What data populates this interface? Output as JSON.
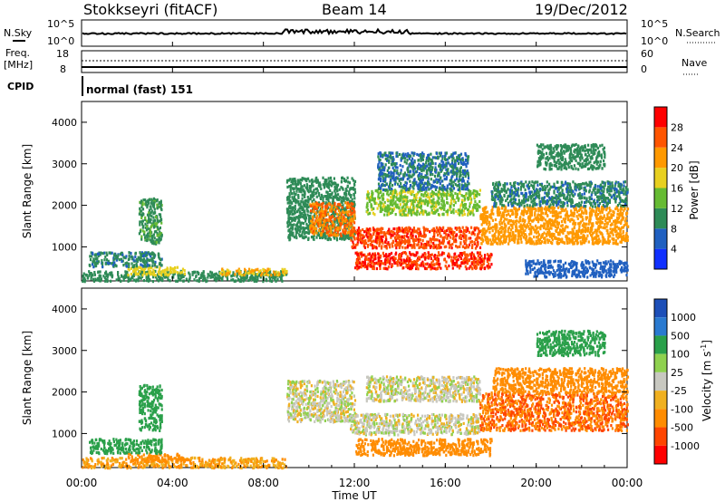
{
  "header": {
    "title": "Stokkseyri (fitACF)",
    "beam": "Beam 14",
    "date": "19/Dec/2012"
  },
  "noise_panel": {
    "left_label": "N.Sky",
    "right_label": "N.Search",
    "left_ticks": [
      "10^5",
      "10^0"
    ],
    "right_ticks": [
      "10^5",
      "10^0"
    ]
  },
  "freq_panel": {
    "left_label_1": "Freq.",
    "left_label_2": "[MHz]",
    "right_label": "Nave",
    "left_ticks": [
      "18",
      "8"
    ],
    "right_ticks": [
      "60",
      "0"
    ],
    "cpid_label": "CPID",
    "cpid_text": "normal (fast) 151"
  },
  "power_colorbar": {
    "label": "Power [dB]",
    "ticks": [
      "28",
      "24",
      "20",
      "16",
      "12",
      "8",
      "4"
    ],
    "colors": [
      "#1030ff",
      "#2060c0",
      "#2e8b57",
      "#66bb33",
      "#e8d020",
      "#ff9900",
      "#ff5500",
      "#ff0000"
    ]
  },
  "velocity_colorbar": {
    "label": "Velocity [m s^-1]",
    "ticks": [
      "1000",
      "500",
      "100",
      "25",
      "-25",
      "-100",
      "-500",
      "-1000"
    ],
    "colors": [
      "#1d4fb8",
      "#2a7ad0",
      "#2aa04a",
      "#8fd14f",
      "#c8c8c0",
      "#f0b020",
      "#ff8c00",
      "#ff4500",
      "#ff0000"
    ]
  },
  "chart_data": [
    {
      "type": "heatmap",
      "title": "",
      "xlabel": "Time UT",
      "ylabel": "Slant Range [km]",
      "xticks": [
        "00:00",
        "04:00",
        "08:00",
        "12:00",
        "16:00",
        "20:00",
        "00:00"
      ],
      "yticks": [
        "1000",
        "2000",
        "3000",
        "4000"
      ],
      "xlim": [
        0,
        24
      ],
      "ylim": [
        180,
        4500
      ],
      "colorbar": "Power [dB]",
      "regions": [
        {
          "t0": 0.0,
          "t1": 9.0,
          "r0": 200,
          "r1": 450,
          "v": 10
        },
        {
          "t0": 2.0,
          "t1": 4.5,
          "r0": 350,
          "r1": 550,
          "v": 18
        },
        {
          "t0": 6.0,
          "t1": 9.0,
          "r0": 350,
          "r1": 500,
          "v": 20
        },
        {
          "t0": 0.3,
          "t1": 3.5,
          "r0": 550,
          "r1": 900,
          "v": 9
        },
        {
          "t0": 2.5,
          "t1": 3.5,
          "r0": 1100,
          "r1": 2200,
          "v": 11
        },
        {
          "t0": 9.0,
          "t1": 12.0,
          "r0": 1200,
          "r1": 2700,
          "v": 10
        },
        {
          "t0": 10.0,
          "t1": 12.0,
          "r0": 1300,
          "r1": 2100,
          "v": 24
        },
        {
          "t0": 11.8,
          "t1": 17.5,
          "r0": 1000,
          "r1": 1500,
          "v": 27
        },
        {
          "t0": 12.0,
          "t1": 18.0,
          "r0": 500,
          "r1": 900,
          "v": 28
        },
        {
          "t0": 12.5,
          "t1": 17.5,
          "r0": 1800,
          "r1": 2400,
          "v": 15
        },
        {
          "t0": 13.0,
          "t1": 17.0,
          "r0": 2400,
          "r1": 3300,
          "v": 8
        },
        {
          "t0": 17.5,
          "t1": 24.0,
          "r0": 1100,
          "r1": 2000,
          "v": 22
        },
        {
          "t0": 18.0,
          "t1": 24.0,
          "r0": 2000,
          "r1": 2600,
          "v": 9
        },
        {
          "t0": 20.0,
          "t1": 23.0,
          "r0": 2900,
          "r1": 3500,
          "v": 10
        },
        {
          "t0": 19.5,
          "t1": 24.0,
          "r0": 300,
          "r1": 700,
          "v": 6
        }
      ]
    },
    {
      "type": "heatmap",
      "title": "",
      "xlabel": "Time UT",
      "ylabel": "Slant Range [km]",
      "xticks": [
        "00:00",
        "04:00",
        "08:00",
        "12:00",
        "16:00",
        "20:00",
        "00:00"
      ],
      "yticks": [
        "1000",
        "2000",
        "3000",
        "4000"
      ],
      "xlim": [
        0,
        24
      ],
      "ylim": [
        180,
        4500
      ],
      "colorbar": "Velocity [m s^-1]",
      "regions": [
        {
          "t0": 0.0,
          "t1": 9.0,
          "r0": 200,
          "r1": 450,
          "v": -100
        },
        {
          "t0": 2.0,
          "t1": 4.5,
          "r0": 350,
          "r1": 550,
          "v": -300
        },
        {
          "t0": 0.3,
          "t1": 3.5,
          "r0": 550,
          "r1": 900,
          "v": 200
        },
        {
          "t0": 2.5,
          "t1": 3.5,
          "r0": 1100,
          "r1": 2200,
          "v": 400
        },
        {
          "t0": 9.0,
          "t1": 12.0,
          "r0": 1300,
          "r1": 2300,
          "v": 0
        },
        {
          "t0": 11.8,
          "t1": 17.5,
          "r0": 1000,
          "r1": 1500,
          "v": 0
        },
        {
          "t0": 12.0,
          "t1": 18.0,
          "r0": 500,
          "r1": 900,
          "v": -300
        },
        {
          "t0": 12.5,
          "t1": 17.5,
          "r0": 1800,
          "r1": 2400,
          "v": 0
        },
        {
          "t0": 17.5,
          "t1": 24.0,
          "r0": 1100,
          "r1": 2000,
          "v": -500
        },
        {
          "t0": 18.0,
          "t1": 24.0,
          "r0": 2000,
          "r1": 2600,
          "v": -150
        },
        {
          "t0": 20.0,
          "t1": 23.0,
          "r0": 2900,
          "r1": 3500,
          "v": 150
        }
      ]
    }
  ]
}
